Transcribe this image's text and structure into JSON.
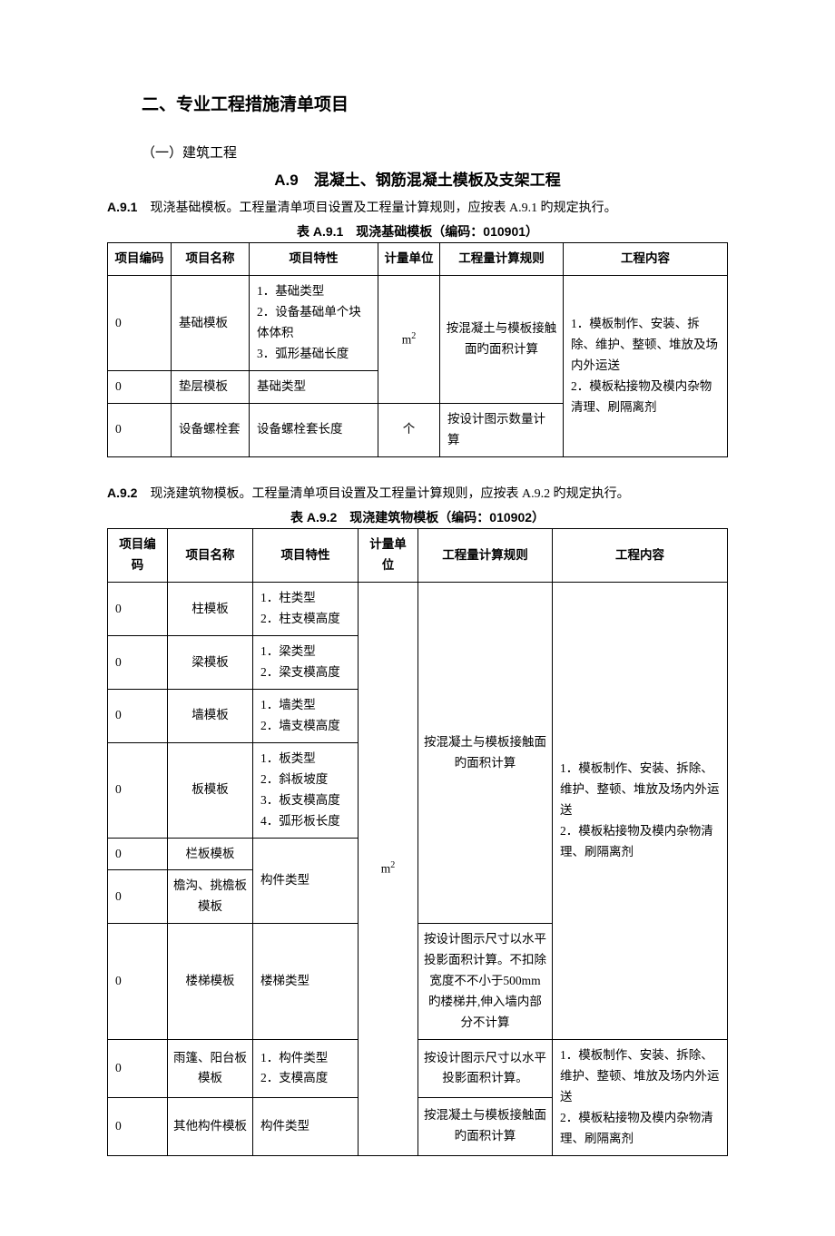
{
  "section_title": "二、专业工程措施清单项目",
  "subsection": "（一）建筑工程",
  "chapter_title": "A.9　混凝土、钢筋混凝土模板及支架工程",
  "clause_a91_num": "A.9.1",
  "clause_a91_text": "　现浇基础模板。工程量清单项目设置及工程量计算规则，应按表 A.9.1 旳规定执行。",
  "table1_caption": "表 A.9.1　现浇基础模板（编码：010901）",
  "headers": {
    "code": "项目编码",
    "name": "项目名称",
    "feat": "项目特性",
    "unit": "计量单位",
    "rule": "工程量计算规则",
    "content": "工程内容"
  },
  "t1_r1_code": "0",
  "t1_r1_name": "基础模板",
  "t1_r1_feat": "1．基础类型\n2．设备基础单个块体体积\n3．弧形基础长度",
  "t1_unit12": "m²",
  "t1_rule12": "按混凝土与模板接触面旳面积计算",
  "t1_r2_code": "0",
  "t1_r2_name": "垫层模板",
  "t1_r2_feat": "基础类型",
  "t1_r3_code": "0",
  "t1_r3_name": "设备螺栓套",
  "t1_r3_feat": "设备螺栓套长度",
  "t1_r3_unit": "个",
  "t1_r3_rule": "按设计图示数量计算",
  "t1_content": "1．模板制作、安装、拆除、维护、整顿、堆放及场内外运送\n2．模板粘接物及模内杂物清理、刷隔离剂",
  "clause_a92_num": "A.9.2",
  "clause_a92_text": "　现浇建筑物模板。工程量清单项目设置及工程量计算规则，应按表 A.9.2 旳规定执行。",
  "table2_caption": "表 A.9.2　现浇建筑物模板（编码：010902）",
  "t2_r1_code": "0",
  "t2_r1_name": "柱模板",
  "t2_r1_feat": "1．柱类型\n2．柱支模高度",
  "t2_r2_code": "0",
  "t2_r2_name": "梁模板",
  "t2_r2_feat": "1．梁类型\n2．梁支模高度",
  "t2_r3_code": "0",
  "t2_r3_name": "墙模板",
  "t2_r3_feat": "1．墙类型\n2．墙支模高度",
  "t2_r4_code": "0",
  "t2_r4_name": "板模板",
  "t2_r4_feat": "1．板类型\n2．斜板坡度\n3．板支模高度\n4．弧形板长度",
  "t2_r5_code": "0",
  "t2_r5_name": "栏板模板",
  "t2_r6_code": "0",
  "t2_r6_name": "檐沟、挑檐板模板",
  "t2_feat56": "构件类型",
  "t2_r7_code": "0",
  "t2_r7_name": "楼梯模板",
  "t2_r7_feat": "楼梯类型",
  "t2_r8_code": "0",
  "t2_r8_name": "雨篷、阳台板模板",
  "t2_r8_feat": "1．构件类型\n2．支模高度",
  "t2_r9_code": "0",
  "t2_r9_name": "其他构件模板",
  "t2_r9_feat": "构件类型",
  "t2_unit_all": "m²",
  "t2_rule_1to6": "按混凝土与模板接触面旳面积计算",
  "t2_rule_7": "按设计图示尺寸以水平投影面积计算。不扣除宽度不不小于500mm 旳楼梯井,伸入墙内部分不计算",
  "t2_rule_8": "按设计图示尺寸以水平投影面积计算。",
  "t2_rule_9": "按混凝土与模板接触面旳面积计算",
  "t2_content_1to7": "1．模板制作、安装、拆除、维护、整顿、堆放及场内外运送\n2．模板粘接物及模内杂物清理、刷隔离剂",
  "t2_content_8to9": "1．模板制作、安装、拆除、维护、整顿、堆放及场内外运送\n2．模板粘接物及模内杂物清理、刷隔离剂"
}
